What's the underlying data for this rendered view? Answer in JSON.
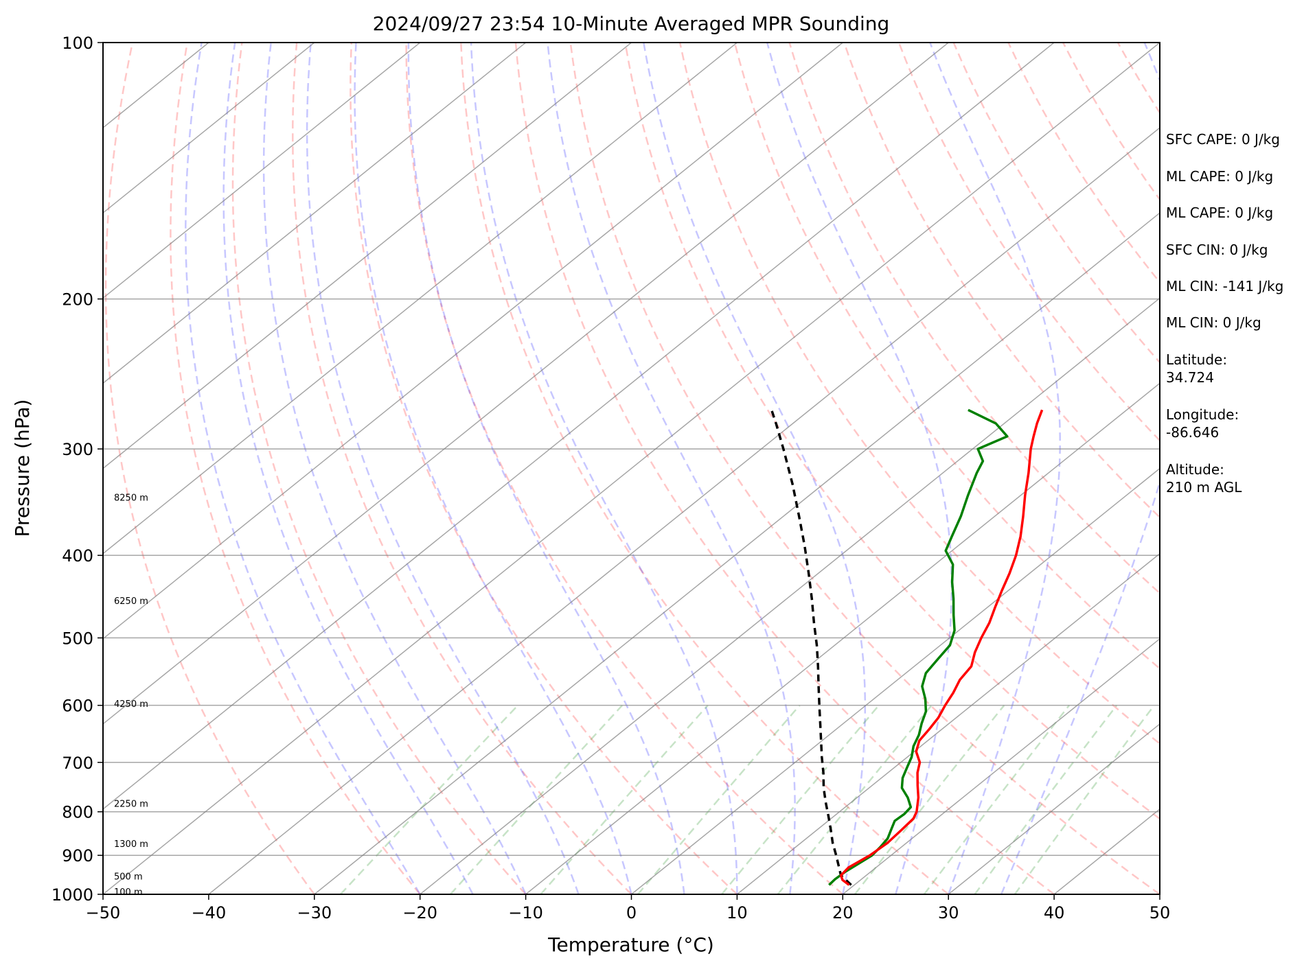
{
  "chart_data": {
    "type": "line",
    "title": "2024/09/27 23:54 10-Minute Averaged MPR Sounding",
    "xlabel": "Temperature (°C)",
    "ylabel": "Pressure (hPa)",
    "xlim": [
      -50,
      50
    ],
    "ylim": [
      1000,
      100
    ],
    "y_scale": "log",
    "skew_t": true,
    "grid": true,
    "x_ticks": [
      "−50",
      "−40",
      "−30",
      "−20",
      "−10",
      "0",
      "10",
      "20",
      "30",
      "40",
      "50"
    ],
    "x_tick_values": [
      -50,
      -40,
      -30,
      -20,
      -10,
      0,
      10,
      20,
      30,
      40,
      50
    ],
    "y_ticks": [
      "100",
      "200",
      "300",
      "400",
      "500",
      "600",
      "700",
      "800",
      "900",
      "1000"
    ],
    "y_tick_values": [
      100,
      200,
      300,
      400,
      500,
      600,
      700,
      800,
      900,
      1000
    ],
    "dry_adiabat_theta_c": [
      -30,
      -20,
      -10,
      0,
      10,
      20,
      30,
      40,
      50,
      60,
      70,
      80,
      90,
      100,
      110,
      120,
      130,
      140,
      150,
      160
    ],
    "moist_adiabat_start_c": [
      -20,
      -15,
      -10,
      -5,
      0,
      5,
      10,
      15,
      20,
      25,
      30,
      35
    ],
    "mixing_ratio_gkg": [
      0.4,
      1,
      2,
      4,
      7,
      10,
      16,
      24,
      32,
      40
    ],
    "colors": {
      "temperature": "#ff0000",
      "dewpoint": "#008000",
      "parcel": "#000000",
      "dry_adiabat": "#ff0000",
      "moist_adiabat": "#0000ff",
      "mixing_ratio": "#008000",
      "isotherm": "#808080"
    },
    "series": [
      {
        "key": "temperature",
        "pressure": [
          975,
          962,
          950,
          930,
          900,
          870,
          840,
          815,
          800,
          770,
          745,
          720,
          700,
          680,
          660,
          640,
          620,
          600,
          580,
          560,
          540,
          520,
          500,
          480,
          460,
          440,
          420,
          400,
          380,
          360,
          340,
          320,
          300,
          290,
          280,
          270
        ],
        "values": [
          19.5,
          18.3,
          17.6,
          17.4,
          18.0,
          18.2,
          18.0,
          17.8,
          17.3,
          15.8,
          14.3,
          12.8,
          11.8,
          10.2,
          9.2,
          8.8,
          8.3,
          7.5,
          6.8,
          5.9,
          5.4,
          4.1,
          3.0,
          2.0,
          0.7,
          -0.6,
          -1.9,
          -3.4,
          -5.2,
          -7.3,
          -9.6,
          -11.9,
          -14.5,
          -15.7,
          -16.9,
          -18.0
        ]
      },
      {
        "key": "dewpoint",
        "pressure": [
          975,
          960,
          940,
          920,
          900,
          880,
          860,
          840,
          820,
          805,
          790,
          770,
          750,
          730,
          710,
          690,
          670,
          650,
          630,
          610,
          590,
          570,
          550,
          530,
          510,
          490,
          470,
          450,
          430,
          410,
          395,
          380,
          360,
          340,
          320,
          310,
          300,
          290,
          280,
          270
        ],
        "values": [
          17.6,
          17.5,
          17.6,
          17.9,
          18.2,
          18.0,
          17.7,
          17.0,
          16.3,
          16.4,
          16.2,
          14.8,
          13.1,
          12.0,
          11.2,
          10.4,
          9.3,
          8.5,
          7.4,
          6.4,
          4.9,
          3.1,
          1.9,
          1.4,
          0.9,
          -0.4,
          -2.3,
          -4.2,
          -6.3,
          -8.3,
          -10.6,
          -11.7,
          -13.2,
          -15.0,
          -16.8,
          -17.6,
          -19.5,
          -18.2,
          -20.8,
          -25.0
        ]
      },
      {
        "key": "parcel",
        "pressure": [
          975,
          950,
          930,
          900,
          870,
          840,
          810,
          780,
          750,
          720,
          690,
          660,
          630,
          600,
          570,
          540,
          510,
          480,
          450,
          420,
          390,
          360,
          330,
          300,
          280,
          270
        ],
        "values": [
          19.7,
          17.6,
          16.5,
          14.8,
          13.0,
          11.3,
          9.5,
          7.6,
          5.7,
          3.9,
          1.9,
          -0.1,
          -2.2,
          -4.4,
          -6.7,
          -9.1,
          -11.7,
          -14.6,
          -17.6,
          -20.9,
          -24.5,
          -28.5,
          -32.9,
          -37.9,
          -41.6,
          -43.6
        ]
      }
    ],
    "height_labels": [
      {
        "text": "100 m",
        "pressure": 993
      },
      {
        "text": "500 m",
        "pressure": 952
      },
      {
        "text": "1300 m",
        "pressure": 872
      },
      {
        "text": "2250 m",
        "pressure": 782
      },
      {
        "text": "4250 m",
        "pressure": 597
      },
      {
        "text": "6250 m",
        "pressure": 452
      },
      {
        "text": "8250 m",
        "pressure": 342
      }
    ],
    "annotations": [
      "SFC CAPE: 0 J/kg",
      "ML CAPE: 0 J/kg",
      "ML CAPE: 0 J/kg",
      "SFC CIN: 0 J/kg",
      "ML CIN: -141 J/kg",
      "ML CIN: 0 J/kg",
      "Latitude:",
      "34.724",
      "Longitude:",
      "-86.646",
      "Altitude:",
      "210 m AGL"
    ]
  }
}
